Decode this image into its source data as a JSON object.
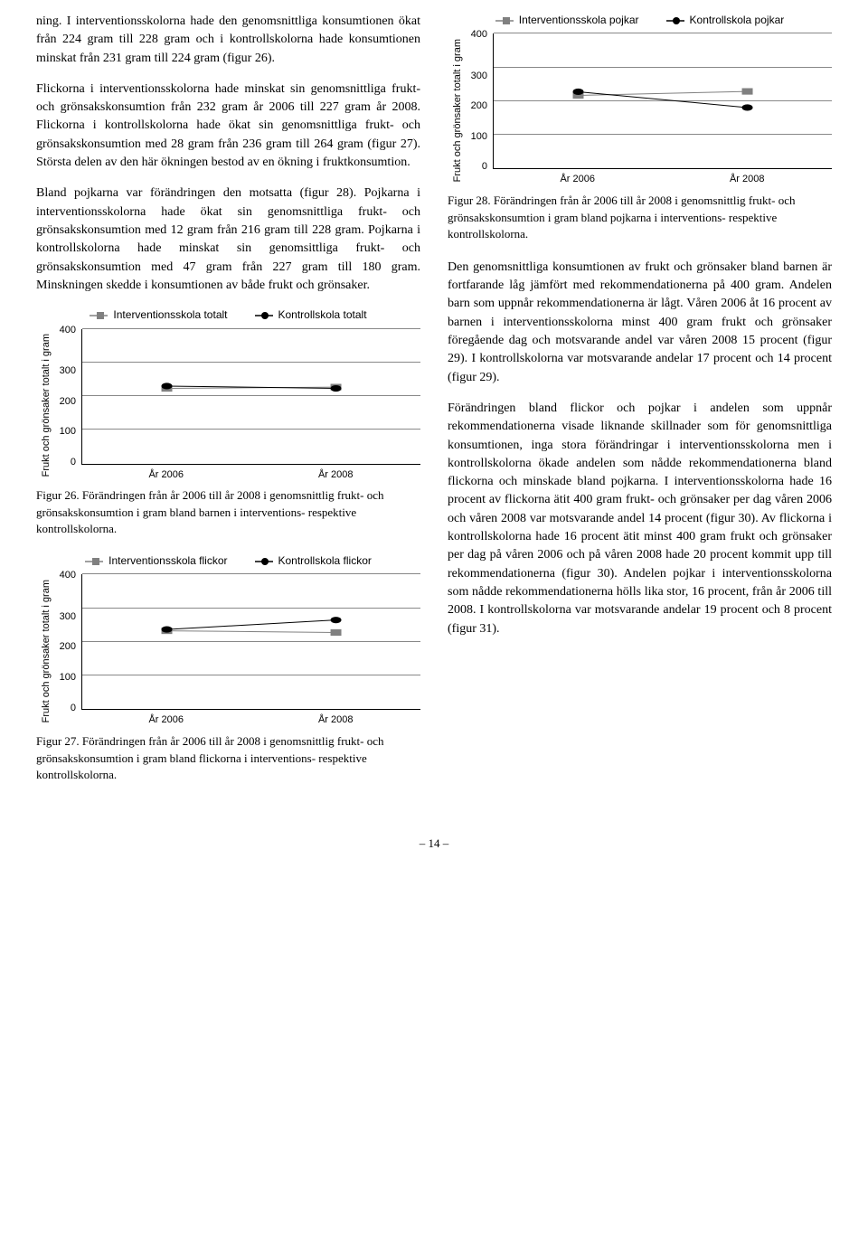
{
  "leftCol": {
    "paras": [
      "ning. I interventionsskolorna hade den genomsnittliga konsumtionen ökat från 224 gram till 228 gram och i kontrollskolorna hade konsumtionen minskat från 231 gram till 224 gram (figur 26).",
      "Flickorna i interventionsskolorna hade minskat sin genomsnittliga frukt- och grönsakskonsumtion från 232 gram år 2006 till 227 gram år 2008. Flickorna i kontrollskolorna hade ökat sin genomsnittliga frukt- och grönsakskonsumtion med 28 gram från 236 gram till 264 gram (figur 27). Största delen av den här ökningen bestod av en ökning i fruktkonsumtion.",
      "Bland pojkarna var förändringen den motsatta (figur 28). Pojkarna i interventionsskolorna hade ökat sin genomsnittliga frukt- och grönsakskonsumtion med 12 gram från 216 gram till 228 gram. Pojkarna i kontrollskolorna hade minskat sin genomsittliga frukt- och grönsakskonsumtion med 47 gram från 227 gram till 180 gram. Minskningen skedde i konsumtionen av både frukt och grönsaker."
    ]
  },
  "rightCol": {
    "paras": [
      "Den genomsnittliga konsumtionen av frukt och grönsaker bland barnen är fortfarande låg jämfört med rekommendationerna på 400 gram. Andelen barn som uppnår rekommendationerna är lågt. Våren 2006 åt 16 procent av barnen i interventionsskolorna minst 400 gram frukt och grönsaker föregående dag och motsvarande andel var våren 2008 15 procent (figur 29). I kontrollskolorna var motsvarande andelar 17 procent och 14 procent (figur 29).",
      "Förändringen bland flickor och pojkar i andelen som uppnår rekommendationerna visade liknande skillnader som för genomsnittliga konsumtionen, inga stora förändringar i interventionsskolorna men i kontrollskolorna ökade andelen som nådde rekommendationerna bland flickorna och minskade bland pojkarna. I interventionsskolorna hade 16 procent av flickorna ätit 400 gram frukt- och grönsaker per dag våren 2006 och våren 2008 var motsvarande andel 14 procent (figur 30). Av flickorna i kontrollskolorna hade 16 procent ätit minst 400 gram frukt och grönsaker per dag på våren 2006 och på våren 2008 hade 20 procent kommit upp till rekommendationerna (figur 30). Andelen pojkar i interventionsskolorna som nådde rekommendationerna hölls lika stor, 16 procent, från år 2006 till 2008. I kontrollskolorna var motsvarande andelar 19 procent och 8 procent (figur 31)."
    ]
  },
  "charts": {
    "yLabel": "Frukt och grönsaker totalt i gram",
    "yTicks": [
      "400",
      "300",
      "200",
      "100",
      "0"
    ],
    "xTicks": [
      "År 2006",
      "År 2008"
    ],
    "ylim": [
      0,
      400
    ],
    "gridline_color": "#888888",
    "axis_color": "#000000",
    "background_color": "#ffffff",
    "intervention_color": "#808080",
    "kontroll_color": "#000000",
    "intervention_marker": "square",
    "kontroll_marker": "circle",
    "fig26": {
      "legend": [
        "Interventionsskola totalt",
        "Kontrollskola totalt"
      ],
      "intervention": [
        224,
        228
      ],
      "kontroll": [
        231,
        224
      ],
      "caption": "Figur 26. Förändringen från år 2006 till år 2008 i genomsnittlig frukt- och grönsakskonsumtion i gram bland barnen i interventions- respektive kontrollskolorna."
    },
    "fig27": {
      "legend": [
        "Interventionsskola flickor",
        "Kontrollskola flickor"
      ],
      "intervention": [
        232,
        227
      ],
      "kontroll": [
        236,
        264
      ],
      "caption": "Figur 27. Förändringen från år 2006 till år 2008 i genomsnittlig frukt- och grönsakskonsumtion i gram bland flickorna i interventions- respektive kontrollskolorna."
    },
    "fig28": {
      "legend": [
        "Interventionsskola pojkar",
        "Kontrollskola pojkar"
      ],
      "intervention": [
        216,
        228
      ],
      "kontroll": [
        227,
        180
      ],
      "caption": "Figur 28. Förändringen från år 2006 till år 2008 i genomsnittlig frukt- och grönsakskonsumtion i gram bland pojkarna i interventions- respektive kontrollskolorna."
    }
  },
  "pageNumber": "– 14 –"
}
